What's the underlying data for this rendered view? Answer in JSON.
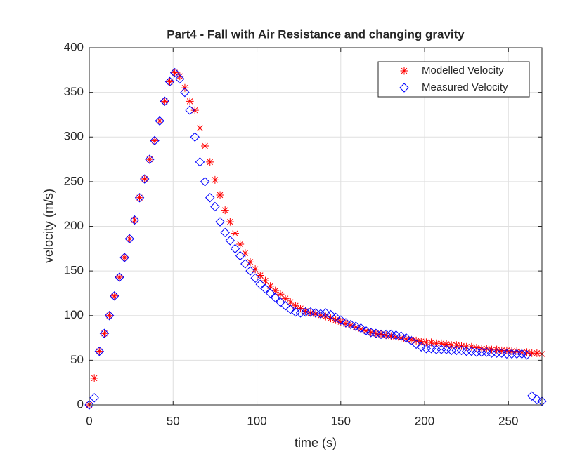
{
  "chart_data": {
    "type": "scatter",
    "title": "Part4 - Fall with Air Resistance and changing gravity",
    "xlabel": "time (s)",
    "ylabel": "velocity (m/s)",
    "xlim": [
      0,
      270
    ],
    "ylim": [
      0,
      400
    ],
    "xticks": [
      0,
      50,
      100,
      150,
      200,
      250
    ],
    "yticks": [
      0,
      50,
      100,
      150,
      200,
      250,
      300,
      350,
      400
    ],
    "grid": true,
    "legend": "top-right",
    "x": [
      0,
      3,
      6,
      9,
      12,
      15,
      18,
      21,
      24,
      27,
      30,
      33,
      36,
      39,
      42,
      45,
      48,
      51,
      54,
      57,
      60,
      63,
      66,
      69,
      72,
      75,
      78,
      81,
      84,
      87,
      90,
      93,
      96,
      99,
      102,
      105,
      108,
      111,
      114,
      117,
      120,
      123,
      126,
      129,
      132,
      135,
      138,
      141,
      144,
      147,
      150,
      153,
      156,
      159,
      162,
      165,
      168,
      171,
      174,
      177,
      180,
      183,
      186,
      189,
      192,
      195,
      198,
      201,
      204,
      207,
      210,
      213,
      216,
      219,
      222,
      225,
      228,
      231,
      234,
      237,
      240,
      243,
      246,
      249,
      252,
      255,
      258,
      261,
      264,
      267,
      270
    ],
    "series": [
      {
        "name": "Modelled Velocity",
        "color": "#ff0000",
        "marker": "asterisk",
        "values": [
          0,
          30,
          60,
          80,
          100,
          122,
          143,
          165,
          186,
          207,
          232,
          253,
          275,
          296,
          318,
          340,
          362,
          372,
          368,
          355,
          340,
          330,
          310,
          290,
          272,
          252,
          235,
          218,
          205,
          192,
          180,
          170,
          160,
          152,
          145,
          139,
          133,
          128,
          124,
          119,
          115,
          111,
          108,
          105,
          103,
          102,
          100,
          99,
          97,
          95,
          93,
          91,
          89,
          87,
          85,
          83,
          81,
          80,
          79,
          78,
          77,
          76,
          75,
          74,
          73,
          72,
          71,
          70,
          70,
          69,
          69,
          68,
          67,
          67,
          66,
          65,
          65,
          64,
          63,
          63,
          62,
          62,
          61,
          61,
          60,
          60,
          59,
          59,
          58,
          58,
          57
        ]
      },
      {
        "name": "Measured Velocity",
        "color": "#0000ff",
        "marker": "diamond",
        "values": [
          0,
          8,
          60,
          80,
          100,
          122,
          143,
          165,
          186,
          207,
          232,
          253,
          275,
          296,
          318,
          340,
          362,
          372,
          365,
          350,
          330,
          300,
          272,
          250,
          232,
          222,
          205,
          193,
          184,
          175,
          167,
          158,
          150,
          142,
          135,
          130,
          125,
          120,
          115,
          111,
          107,
          104,
          103,
          104,
          104,
          103,
          102,
          103,
          101,
          98,
          95,
          92,
          90,
          88,
          86,
          83,
          81,
          80,
          79,
          79,
          79,
          78,
          77,
          75,
          72,
          68,
          65,
          63,
          63,
          62,
          62,
          62,
          61,
          61,
          61,
          60,
          60,
          59,
          59,
          59,
          58,
          58,
          58,
          57,
          57,
          57,
          57,
          56,
          10,
          6,
          4
        ]
      }
    ]
  }
}
